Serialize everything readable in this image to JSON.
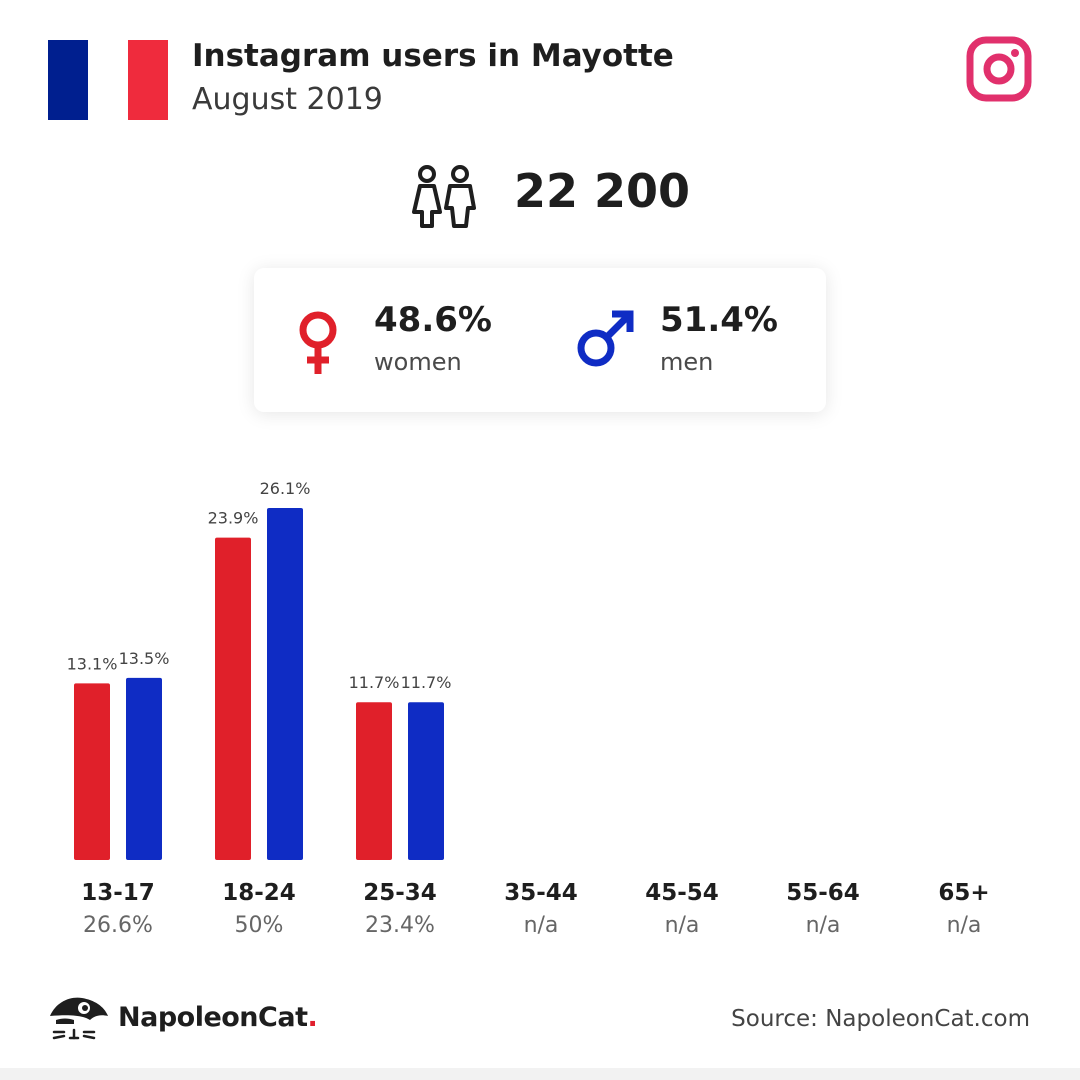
{
  "header": {
    "title": "Instagram users in Mayotte",
    "subtitle": "August 2019"
  },
  "flag": {
    "blue": "#001f8f",
    "red": "#ef2b3d"
  },
  "icons": {
    "logo": "instagram-icon",
    "people": "people-icon",
    "female": "female-symbol-icon",
    "male": "male-symbol-icon",
    "brand": "napoleoncat-logo-icon"
  },
  "total": {
    "value": "22 200"
  },
  "gender": {
    "women": {
      "percent": "48.6%",
      "label": "women",
      "color": "#e0202a"
    },
    "men": {
      "percent": "51.4%",
      "label": "men",
      "color": "#0f2cc4"
    }
  },
  "chart_data": {
    "type": "bar",
    "categories": [
      "13-17",
      "18-24",
      "25-34",
      "35-44",
      "45-54",
      "55-64",
      "65+"
    ],
    "totals": [
      "26.6%",
      "50%",
      "23.4%",
      "n/a",
      "n/a",
      "n/a",
      "n/a"
    ],
    "series": [
      {
        "values": [
          13.1,
          23.9,
          11.7,
          null,
          null,
          null,
          null
        ],
        "labels": [
          "13.1%",
          "23.9%",
          "11.7%",
          "",
          "",
          "",
          ""
        ],
        "color": "#e0202a"
      },
      {
        "values": [
          13.5,
          26.1,
          11.7,
          null,
          null,
          null,
          null
        ],
        "labels": [
          "13.5%",
          "26.1%",
          "11.7%",
          "",
          "",
          "",
          ""
        ],
        "color": "#0f2cc4"
      }
    ],
    "ylim": [
      0,
      26.1
    ],
    "grid": false
  },
  "footer": {
    "brand_name": "NapoleonCat",
    "brand_dot": ".",
    "source": "Source: NapoleonCat.com"
  }
}
